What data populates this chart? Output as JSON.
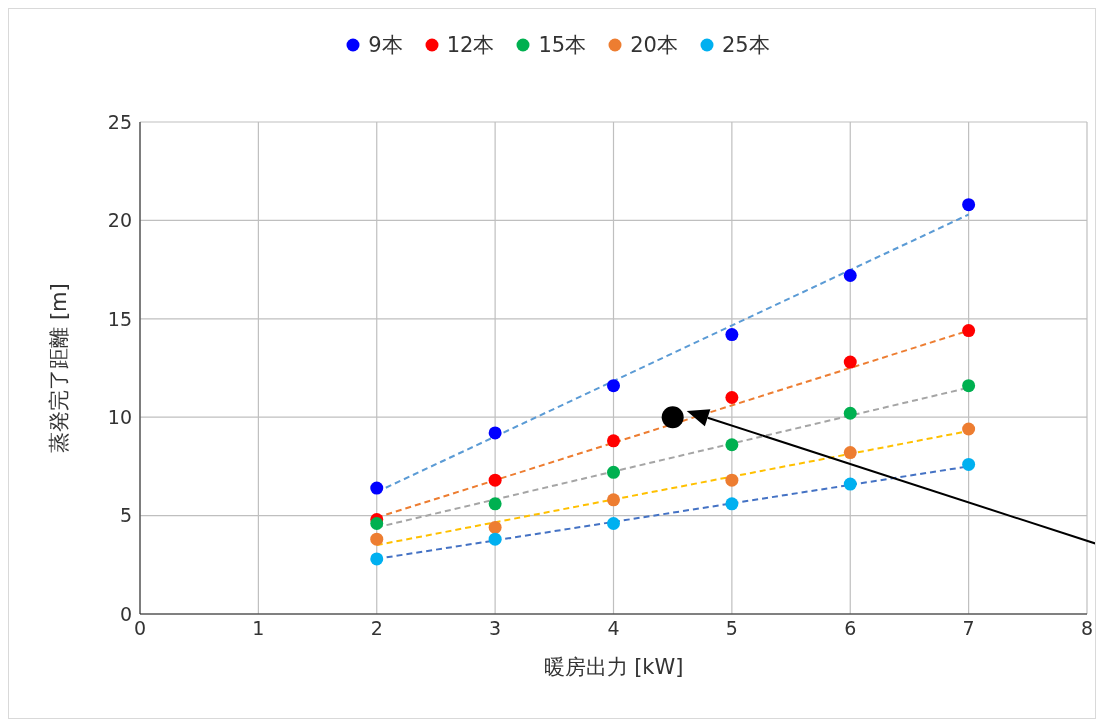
{
  "chart_data": {
    "type": "scatter",
    "xlabel": "暖房出力 [kW]",
    "ylabel": "蒸発完了距離 [m]",
    "xlim": [
      0,
      8
    ],
    "xticks": [
      0,
      1,
      2,
      3,
      4,
      5,
      6,
      7,
      8
    ],
    "ylim": [
      0,
      25
    ],
    "yticks": [
      0,
      5,
      10,
      15,
      20,
      25
    ],
    "grid": true,
    "legend": "top",
    "marker": "circle",
    "series": [
      {
        "name": "9本",
        "color": "#0000ff",
        "x": [
          2,
          3,
          4,
          5,
          6,
          7
        ],
        "values": [
          6.4,
          9.2,
          11.6,
          14.2,
          17.2,
          20.8
        ]
      },
      {
        "name": "12本",
        "color": "#ff0000",
        "x": [
          2,
          3,
          4,
          5,
          6,
          7
        ],
        "values": [
          4.8,
          6.8,
          8.8,
          11.0,
          12.8,
          14.4
        ]
      },
      {
        "name": "15本",
        "color": "#00b050",
        "x": [
          2,
          3,
          4,
          5,
          6,
          7
        ],
        "values": [
          4.6,
          5.6,
          7.2,
          8.6,
          10.2,
          11.6
        ]
      },
      {
        "name": "20本",
        "color": "#ed7d31",
        "x": [
          2,
          3,
          4,
          5,
          6,
          7
        ],
        "values": [
          3.8,
          4.4,
          5.8,
          6.8,
          8.2,
          9.4
        ]
      },
      {
        "name": "25本",
        "color": "#00b0f0",
        "x": [
          2,
          3,
          4,
          5,
          6,
          7
        ],
        "values": [
          2.8,
          3.8,
          4.6,
          5.6,
          6.6,
          7.6
        ]
      },
      {
        "type": "line",
        "color": "#5b9bd5",
        "line_style": "dashed",
        "marker": "none",
        "x": [
          2,
          7
        ],
        "values": [
          6.2,
          20.3
        ]
      },
      {
        "type": "line",
        "color": "#ed7d31",
        "line_style": "dashed",
        "marker": "none",
        "x": [
          2,
          7
        ],
        "values": [
          4.9,
          14.4
        ]
      },
      {
        "type": "line",
        "color": "#a5a5a5",
        "line_style": "dashed",
        "marker": "none",
        "x": [
          2,
          7
        ],
        "values": [
          4.4,
          11.5
        ]
      },
      {
        "type": "line",
        "color": "#ffc000",
        "line_style": "dashed",
        "marker": "none",
        "x": [
          2,
          7
        ],
        "values": [
          3.5,
          9.3
        ]
      },
      {
        "type": "line",
        "color": "#4472c4",
        "line_style": "dashed",
        "marker": "none",
        "x": [
          2,
          7
        ],
        "values": [
          2.8,
          7.5
        ]
      },
      {
        "color": "#000000",
        "x": [
          4.5
        ],
        "values": [
          10
        ]
      }
    ]
  }
}
